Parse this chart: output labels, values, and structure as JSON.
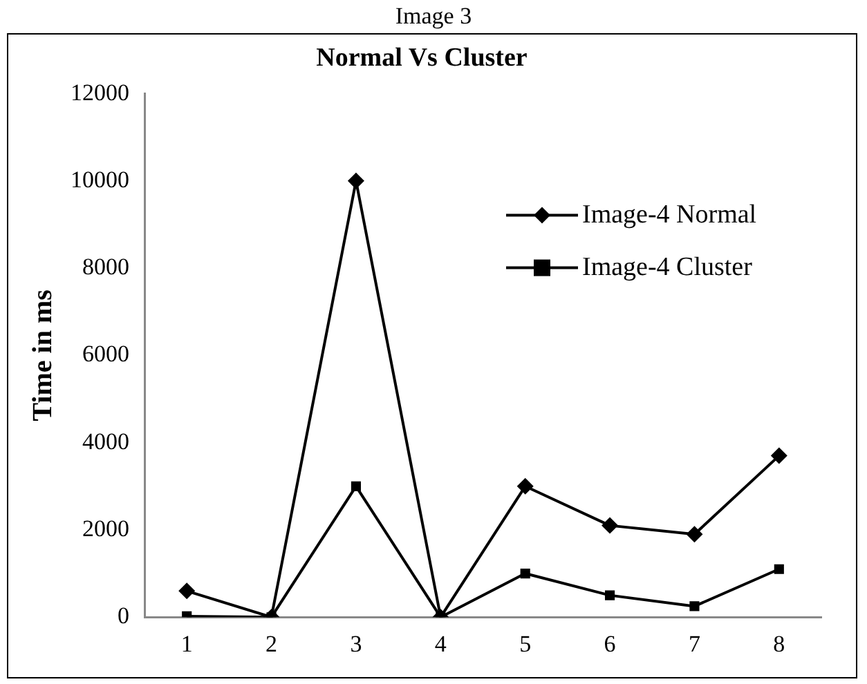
{
  "chart_data": {
    "type": "line",
    "title": "Normal Vs Cluster",
    "ylabel": "Time in ms",
    "annotations": [
      "Image 3"
    ],
    "categories": [
      "1",
      "2",
      "3",
      "4",
      "5",
      "6",
      "7",
      "8"
    ],
    "series": [
      {
        "name": "Image-4 Normal",
        "color": "#000000",
        "marker": "diamond",
        "values": [
          600,
          0,
          10000,
          0,
          3000,
          2100,
          1900,
          3700
        ]
      },
      {
        "name": "Image-4 Cluster",
        "color": "#000000",
        "marker": "square",
        "values": [
          20,
          0,
          3000,
          0,
          1000,
          500,
          250,
          1100
        ]
      }
    ],
    "ylim": [
      0,
      12000
    ],
    "yticks": [
      0,
      2000,
      4000,
      6000,
      8000,
      10000,
      12000
    ],
    "grid": false,
    "legend": "top right",
    "line_style": "solid"
  }
}
